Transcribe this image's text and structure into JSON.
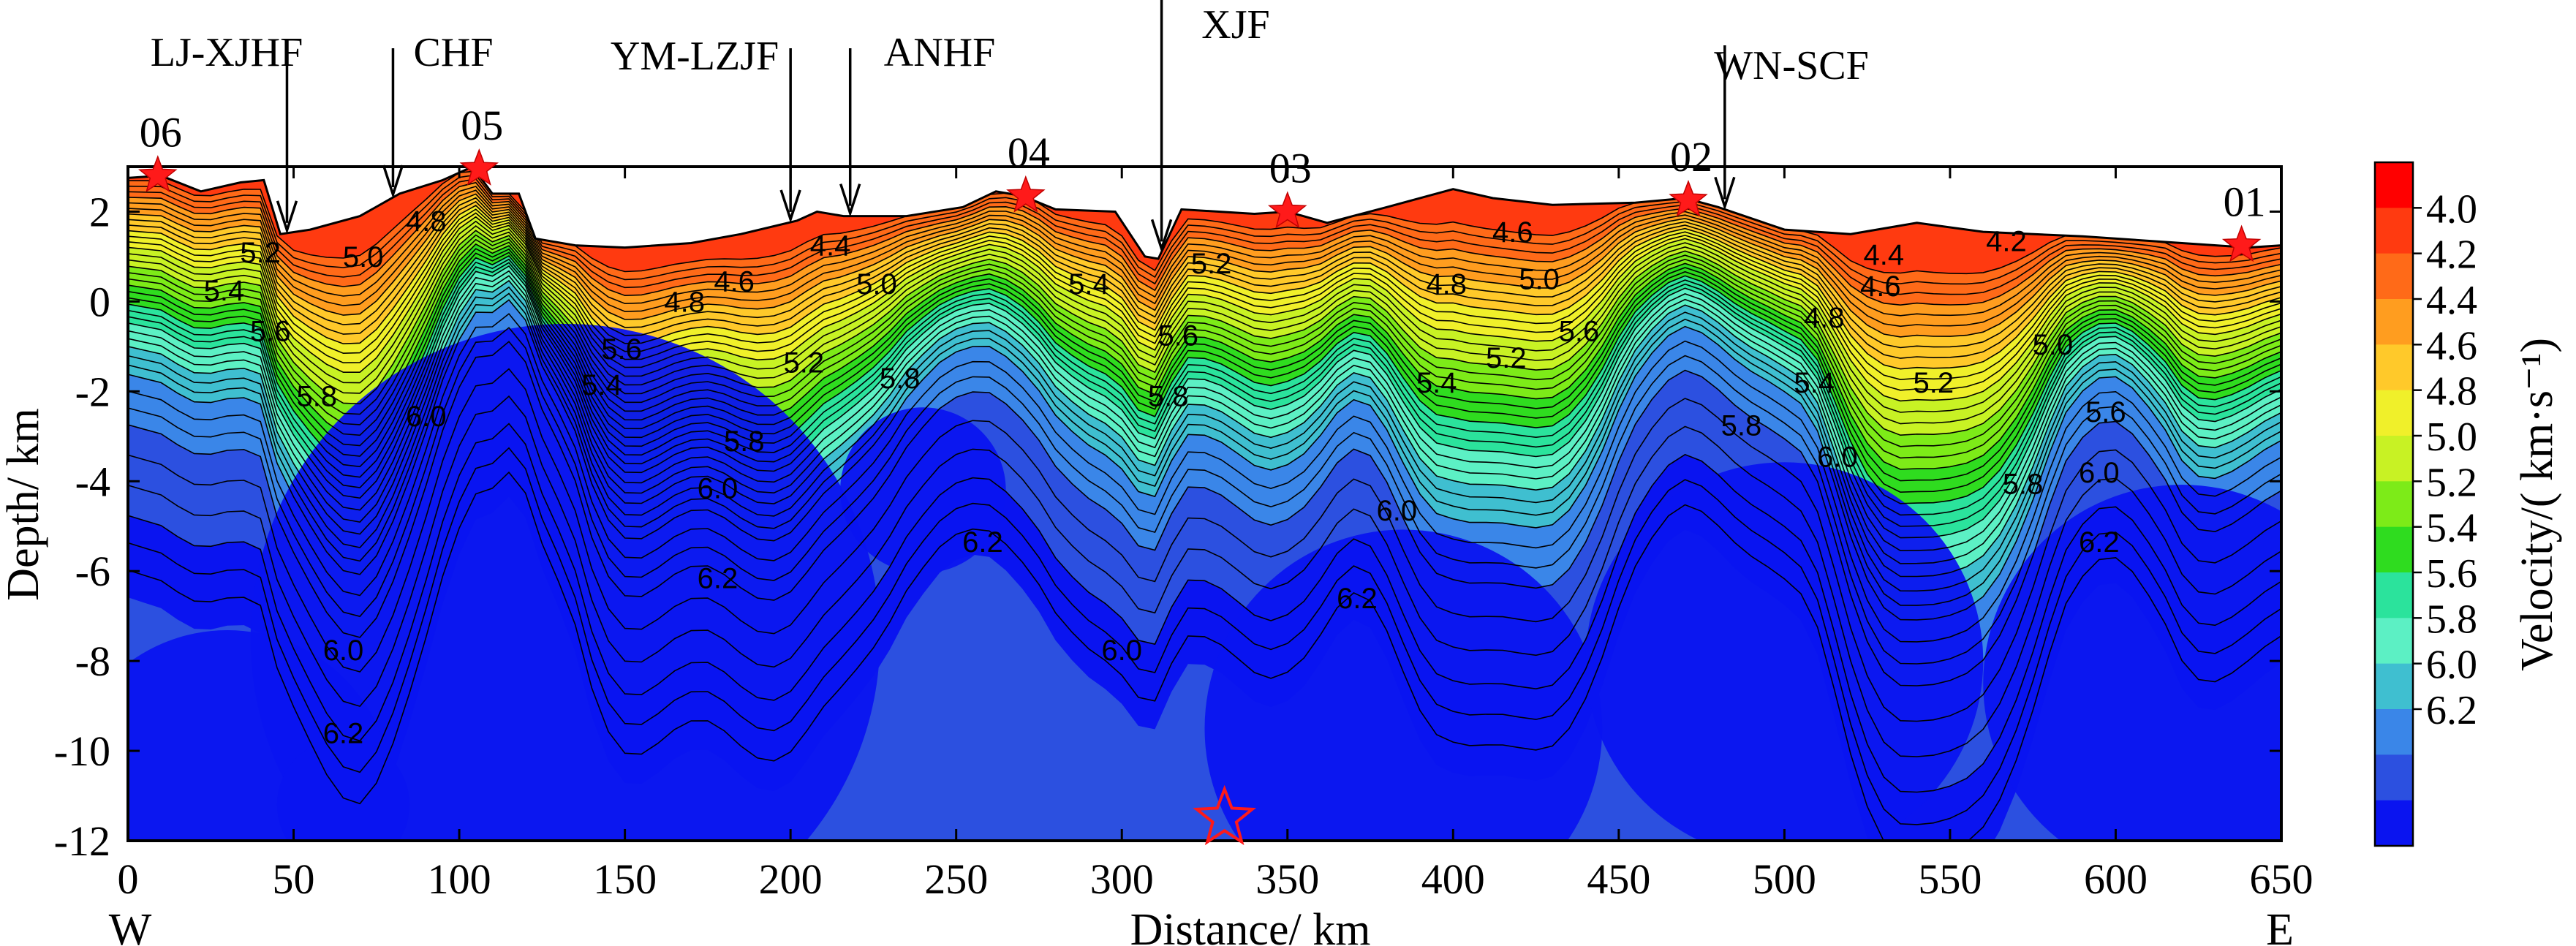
{
  "chart_data": {
    "type": "contour-profile",
    "title": "",
    "xlabel": "Distance/ km",
    "ylabel": "Depth/ km",
    "colorbar_label": "Velocity/( km·s⁻¹)",
    "xlim": [
      0,
      650
    ],
    "ylim": [
      -12,
      3
    ],
    "x_ticks": [
      0,
      50,
      100,
      150,
      200,
      250,
      300,
      350,
      400,
      450,
      500,
      550,
      600,
      650
    ],
    "y_ticks": [
      2,
      0,
      -2,
      -4,
      -6,
      -8,
      -10,
      -12
    ],
    "x_tick_labels": [
      "0",
      "50",
      "100",
      "150",
      "200",
      "250",
      "300",
      "350",
      "400",
      "450",
      "500",
      "550",
      "600",
      "650"
    ],
    "y_tick_labels": [
      "2",
      "0",
      "-2",
      "-4",
      "-6",
      "-8",
      "-10",
      "-12"
    ],
    "direction_labels": {
      "west": "W",
      "east": "E"
    },
    "colorbar": {
      "levels": [
        "4.0",
        "4.2",
        "4.4",
        "4.6",
        "4.8",
        "5.0",
        "5.2",
        "5.4",
        "5.6",
        "5.8",
        "6.0",
        "6.2"
      ],
      "colors": [
        "#ff0000",
        "#ff3a10",
        "#ff6a18",
        "#ff9d1f",
        "#ffc92a",
        "#f0f02a",
        "#c8f224",
        "#7deb18",
        "#2fdc1f",
        "#2be39c",
        "#5cf0c4",
        "#3fbfd0",
        "#3a86e8",
        "#2c50e0",
        "#0a14f0"
      ]
    },
    "faults": [
      {
        "name": "LJ-XJHF",
        "x": 48
      },
      {
        "name": "CHF",
        "x": 80
      },
      {
        "name": "YM-LZJF",
        "x": 200
      },
      {
        "name": "ANHF",
        "x": 218
      },
      {
        "name": "XJF",
        "x": 312
      },
      {
        "name": "WN-SCF",
        "x": 482
      }
    ],
    "stations": [
      {
        "name": "06",
        "x": 9,
        "depth": 2.8
      },
      {
        "name": "05",
        "x": 106,
        "depth": 2.95
      },
      {
        "name": "04",
        "x": 271,
        "depth": 2.35
      },
      {
        "name": "03",
        "x": 350,
        "depth": 2.0
      },
      {
        "name": "02",
        "x": 471,
        "depth": 2.25
      },
      {
        "name": "01",
        "x": 638,
        "depth": 1.25
      }
    ],
    "hypocenter": {
      "x": 331,
      "depth": -11.5
    },
    "topography": [
      [
        0,
        2.75
      ],
      [
        10,
        2.8
      ],
      [
        22,
        2.45
      ],
      [
        34,
        2.65
      ],
      [
        41,
        2.7
      ],
      [
        46,
        1.5
      ],
      [
        55,
        1.6
      ],
      [
        70,
        1.9
      ],
      [
        82,
        2.4
      ],
      [
        95,
        2.7
      ],
      [
        104,
        3.0
      ],
      [
        110,
        2.4
      ],
      [
        118,
        2.4
      ],
      [
        123,
        1.4
      ],
      [
        135,
        1.25
      ],
      [
        150,
        1.2
      ],
      [
        170,
        1.3
      ],
      [
        185,
        1.5
      ],
      [
        202,
        1.8
      ],
      [
        208,
        2.0
      ],
      [
        216,
        1.9
      ],
      [
        235,
        1.9
      ],
      [
        252,
        2.1
      ],
      [
        262,
        2.45
      ],
      [
        270,
        2.35
      ],
      [
        280,
        2.05
      ],
      [
        298,
        2.0
      ],
      [
        307,
        1.0
      ],
      [
        311,
        0.95
      ],
      [
        318,
        2.05
      ],
      [
        340,
        1.95
      ],
      [
        350,
        2.0
      ],
      [
        362,
        1.75
      ],
      [
        380,
        2.1
      ],
      [
        400,
        2.5
      ],
      [
        412,
        2.3
      ],
      [
        430,
        2.15
      ],
      [
        455,
        2.2
      ],
      [
        470,
        2.3
      ],
      [
        480,
        2.1
      ],
      [
        500,
        1.6
      ],
      [
        520,
        1.5
      ],
      [
        540,
        1.75
      ],
      [
        560,
        1.55
      ],
      [
        590,
        1.45
      ],
      [
        620,
        1.3
      ],
      [
        640,
        1.2
      ],
      [
        650,
        1.25
      ]
    ],
    "contour_labels": [
      {
        "text": "4.2",
        "x": 567,
        "depth": 1.35
      },
      {
        "text": "4.4",
        "x": 530,
        "depth": 1.05
      },
      {
        "text": "4.4",
        "x": 212,
        "depth": 1.25
      },
      {
        "text": "4.6",
        "x": 183,
        "depth": 0.45
      },
      {
        "text": "4.6",
        "x": 529,
        "depth": 0.35
      },
      {
        "text": "4.6",
        "x": 418,
        "depth": 1.55
      },
      {
        "text": "4.8",
        "x": 90,
        "depth": 1.8
      },
      {
        "text": "4.8",
        "x": 168,
        "depth": 0.0
      },
      {
        "text": "4.8",
        "x": 512,
        "depth": -0.35
      },
      {
        "text": "4.8",
        "x": 398,
        "depth": 0.4
      },
      {
        "text": "5.0",
        "x": 71,
        "depth": 1.0
      },
      {
        "text": "5.0",
        "x": 226,
        "depth": 0.4
      },
      {
        "text": "5.0",
        "x": 426,
        "depth": 0.5
      },
      {
        "text": "5.0",
        "x": 581,
        "depth": -0.95
      },
      {
        "text": "5.2",
        "x": 40,
        "depth": 1.1
      },
      {
        "text": "5.2",
        "x": 204,
        "depth": -1.35
      },
      {
        "text": "5.2",
        "x": 327,
        "depth": 0.85
      },
      {
        "text": "5.2",
        "x": 416,
        "depth": -1.25
      },
      {
        "text": "5.2",
        "x": 545,
        "depth": -1.8
      },
      {
        "text": "5.4",
        "x": 29,
        "depth": 0.25
      },
      {
        "text": "5.4",
        "x": 143,
        "depth": -1.85
      },
      {
        "text": "5.4",
        "x": 290,
        "depth": 0.4
      },
      {
        "text": "5.4",
        "x": 395,
        "depth": -1.8
      },
      {
        "text": "5.4",
        "x": 509,
        "depth": -1.8
      },
      {
        "text": "5.6",
        "x": 43,
        "depth": -0.65
      },
      {
        "text": "5.6",
        "x": 149,
        "depth": -1.05
      },
      {
        "text": "5.6",
        "x": 317,
        "depth": -0.75
      },
      {
        "text": "5.6",
        "x": 438,
        "depth": -0.65
      },
      {
        "text": "5.6",
        "x": 597,
        "depth": -2.45
      },
      {
        "text": "5.8",
        "x": 57,
        "depth": -2.1
      },
      {
        "text": "5.8",
        "x": 186,
        "depth": -3.1
      },
      {
        "text": "5.8",
        "x": 233,
        "depth": -1.7
      },
      {
        "text": "5.8",
        "x": 314,
        "depth": -2.1
      },
      {
        "text": "5.8",
        "x": 487,
        "depth": -2.75
      },
      {
        "text": "5.8",
        "x": 572,
        "depth": -4.05
      },
      {
        "text": "6.0",
        "x": 90,
        "depth": -2.55
      },
      {
        "text": "6.0",
        "x": 178,
        "depth": -4.15
      },
      {
        "text": "6.0",
        "x": 300,
        "depth": -7.75
      },
      {
        "text": "6.0",
        "x": 383,
        "depth": -4.65
      },
      {
        "text": "6.0",
        "x": 516,
        "depth": -3.45
      },
      {
        "text": "6.0",
        "x": 595,
        "depth": -3.8
      },
      {
        "text": "6.0",
        "x": 65,
        "depth": -7.75
      },
      {
        "text": "6.2",
        "x": 178,
        "depth": -6.15
      },
      {
        "text": "6.2",
        "x": 258,
        "depth": -5.35
      },
      {
        "text": "6.2",
        "x": 371,
        "depth": -6.6
      },
      {
        "text": "6.2",
        "x": 595,
        "depth": -5.35
      },
      {
        "text": "6.2",
        "x": 65,
        "depth": -9.6
      }
    ]
  }
}
